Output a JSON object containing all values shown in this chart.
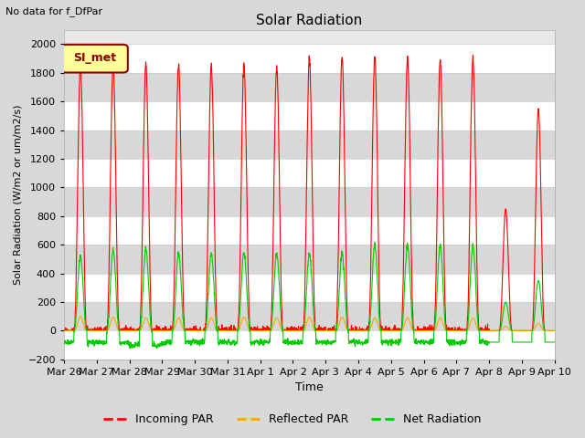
{
  "title": "Solar Radiation",
  "suptitle": "No data for f_DfPar",
  "ylabel": "Solar Radiation (W/m2 or um/m2/s)",
  "xlabel": "Time",
  "legend_label": "SI_met",
  "ylim": [
    -200,
    2100
  ],
  "series_labels": [
    "Incoming PAR",
    "Reflected PAR",
    "Net Radiation"
  ],
  "series_colors": [
    "#ff0000",
    "#ffa500",
    "#00cc00"
  ],
  "background_color": "#d8d8d8",
  "plot_bg_color": "#e8e8e8",
  "grid_color": "#ffffff",
  "band_color": "#d8d8d8",
  "legend_box_color": "#ffff99",
  "legend_box_edge": "#8b0000",
  "n_days": 15,
  "tick_labels": [
    "Mar 26",
    "Mar 27",
    "Mar 28",
    "Mar 29",
    "Mar 30",
    "Mar 31",
    "Apr 1",
    "Apr 2",
    "Apr 3",
    "Apr 4",
    "Apr 5",
    "Apr 6",
    "Apr 7",
    "Apr 8",
    "Apr 9",
    "Apr 10"
  ],
  "peak_incoming": [
    1850,
    1860,
    1860,
    1855,
    1855,
    1850,
    1840,
    1895,
    1905,
    1905,
    1905,
    1900,
    1905,
    850,
    1550
  ],
  "peak_reflected": [
    100,
    95,
    90,
    90,
    90,
    95,
    90,
    95,
    95,
    90,
    90,
    90,
    90,
    30,
    50
  ],
  "peak_net": [
    530,
    570,
    575,
    545,
    540,
    545,
    540,
    540,
    535,
    600,
    595,
    595,
    590,
    200,
    350
  ],
  "night_net": [
    -80,
    -80,
    -100,
    -80,
    -80,
    -80,
    -80,
    -80,
    -80,
    -80,
    -80,
    -80,
    -80,
    -80,
    -80
  ]
}
